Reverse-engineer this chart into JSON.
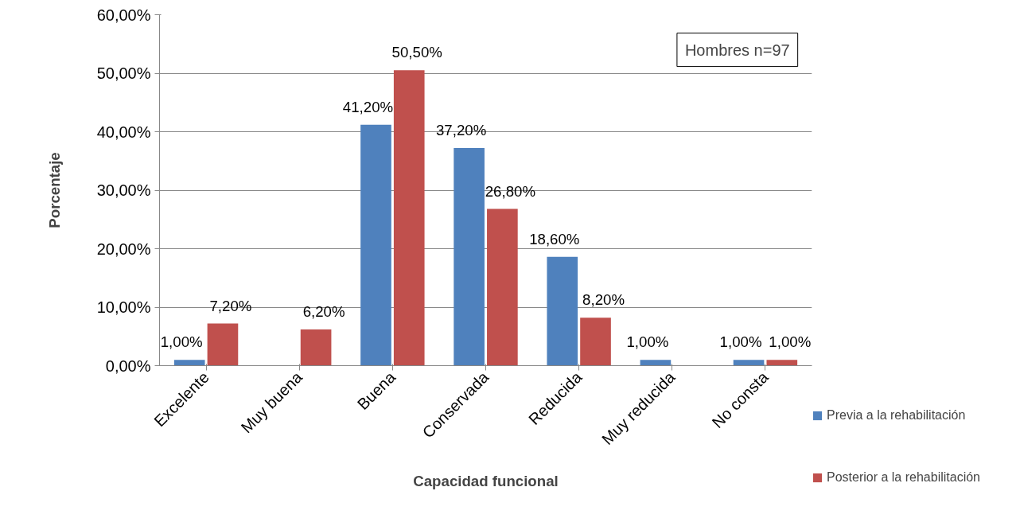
{
  "chart_data": {
    "type": "bar",
    "xlabel": "Capacidad funcional",
    "ylabel": "Porcentaje",
    "categories": [
      "Excelente",
      "Muy buena",
      "Buena",
      "Conservada",
      "Reducida",
      "Muy reducida",
      "No consta"
    ],
    "series": [
      {
        "name": "Previa a la rehabilitación",
        "color": "#4f81bd",
        "values": [
          1.0,
          null,
          41.2,
          37.2,
          18.6,
          1.0,
          1.0
        ],
        "value_labels": [
          "1,00%",
          null,
          "41,20%",
          "37,20%",
          "18,60%",
          "1,00%",
          "1,00%"
        ]
      },
      {
        "name": "Posterior a la rehabilitación",
        "color": "#c0504d",
        "values": [
          7.2,
          6.2,
          50.5,
          26.8,
          8.2,
          null,
          1.0
        ],
        "value_labels": [
          "7,20%",
          "6,20%",
          "50,50%",
          "26,80%",
          "8,20%",
          null,
          "1,00%"
        ]
      }
    ],
    "ylim": [
      0,
      60
    ],
    "yticks": [
      {
        "value": 0,
        "label": "0,00%"
      },
      {
        "value": 10,
        "label": "10,00%"
      },
      {
        "value": 20,
        "label": "20,00%"
      },
      {
        "value": 30,
        "label": "30,00%"
      },
      {
        "value": 40,
        "label": "40,00%"
      },
      {
        "value": 50,
        "label": "50,00%"
      },
      {
        "value": 60,
        "label": "60,00%"
      }
    ],
    "annotations": [
      "Hombres n=97"
    ],
    "grid": "y",
    "legend": "right"
  }
}
